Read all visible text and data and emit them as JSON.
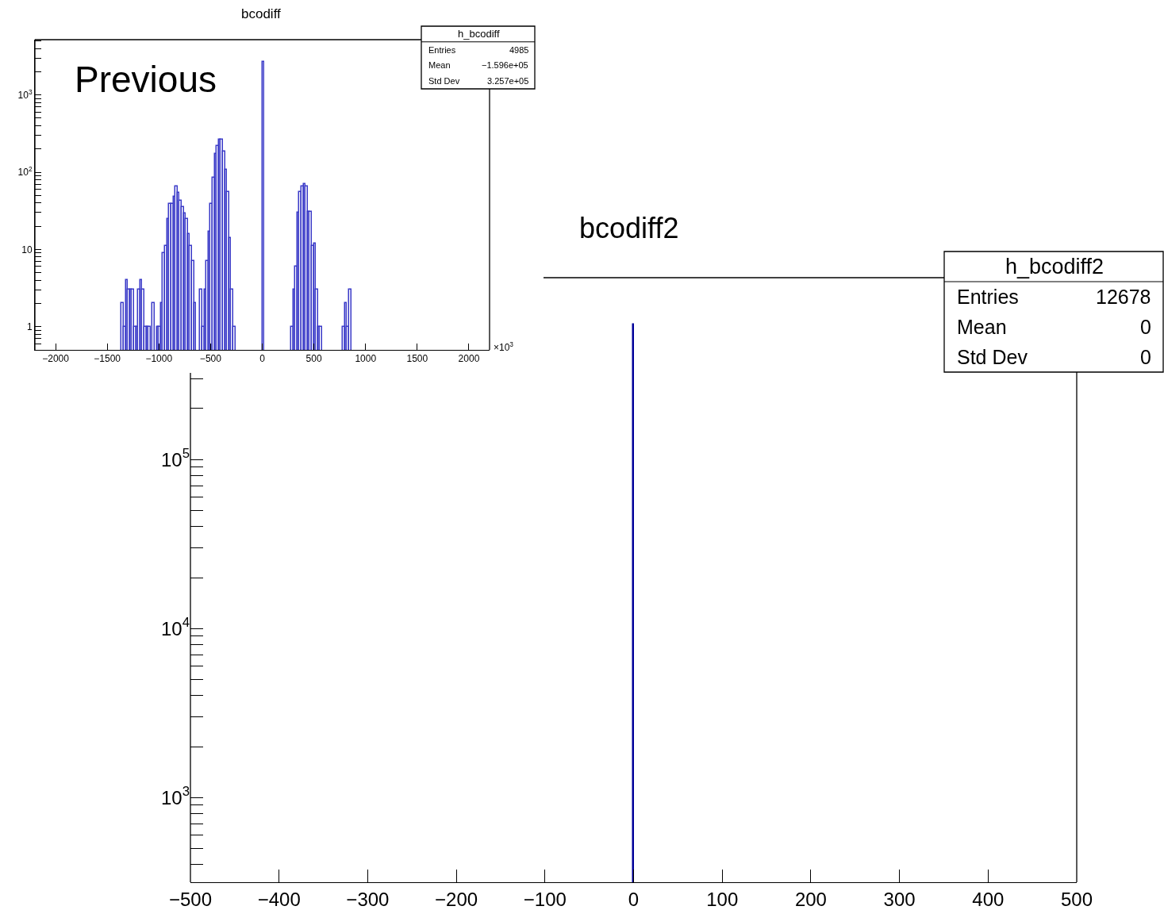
{
  "chart_data": [
    {
      "type": "histogram",
      "title": "bcodiff",
      "xlabel": "×10$^{3}$",
      "color": "#3a3ac8",
      "log": true,
      "bins": [
        -1360,
        -1340,
        -1320,
        -1300,
        -1280,
        -1260,
        -1240,
        -1220,
        -1200,
        -1180,
        -1160,
        -1140,
        -1120,
        -1100,
        -1080,
        -1060,
        -1040,
        -1020,
        -1000,
        -980,
        -960,
        -940,
        -920,
        -900,
        -880,
        -860,
        -840,
        -820,
        -800,
        -780,
        -760,
        -740,
        -720,
        -700,
        -680,
        -660,
        -640,
        -600,
        -580,
        -560,
        -540,
        -520,
        -500,
        -480,
        -460,
        -440,
        -420,
        -400,
        -380,
        -360,
        -340,
        -320,
        -300,
        -280,
        -260,
        0,
        20,
        280,
        300,
        320,
        340,
        360,
        380,
        400,
        420,
        440,
        460,
        480,
        500,
        520,
        540,
        560,
        580,
        780,
        800,
        820,
        840,
        860
      ],
      "values": [
        2,
        1,
        4,
        3,
        3,
        3,
        1,
        1,
        3,
        4,
        3,
        1,
        1,
        1,
        null,
        2,
        null,
        1,
        1,
        2,
        9,
        11,
        25,
        39,
        39,
        48,
        66,
        54,
        43,
        35,
        29,
        25,
        16,
        11,
        7,
        2,
        null,
        3,
        1,
        3,
        7,
        17,
        39,
        84,
        173,
        220,
        265,
        265,
        186,
        108,
        55,
        14,
        3,
        1,
        null,
        2700,
        null,
        1,
        3,
        6,
        30,
        55,
        65,
        71,
        65,
        31,
        31,
        11,
        12,
        3,
        1,
        1,
        null,
        1,
        2,
        1,
        3
      ],
      "xlim": [
        -2200,
        2200
      ],
      "xticks": [
        -2000,
        -1500,
        -1000,
        -500,
        0,
        500,
        1000,
        1500,
        2000
      ],
      "ylim": [
        0.5,
        5200
      ],
      "yticks": [
        {
          "value": 0.6,
          "label": null
        },
        {
          "value": 0.7,
          "label": null
        },
        {
          "value": 0.8,
          "label": null
        },
        {
          "value": 0.9,
          "label": null
        },
        1,
        {
          "value": 2,
          "label": null
        },
        {
          "value": 3,
          "label": null
        },
        {
          "value": 4,
          "label": null
        },
        {
          "value": 5,
          "label": null
        },
        {
          "value": 6,
          "label": null
        },
        {
          "value": 7,
          "label": null
        },
        {
          "value": 8,
          "label": null
        },
        {
          "value": 9,
          "label": null
        },
        10,
        {
          "value": 20,
          "label": null
        },
        {
          "value": 30,
          "label": null
        },
        {
          "value": 40,
          "label": null
        },
        {
          "value": 50,
          "label": null
        },
        {
          "value": 60,
          "label": null
        },
        {
          "value": 70,
          "label": null
        },
        {
          "value": 80,
          "label": null
        },
        {
          "value": 90,
          "label": null
        },
        {
          "value": 100,
          "label": "10$^{2}$"
        },
        {
          "value": 200,
          "label": null
        },
        {
          "value": 300,
          "label": null
        },
        {
          "value": 400,
          "label": null
        },
        {
          "value": 500,
          "label": null
        },
        {
          "value": 600,
          "label": null
        },
        {
          "value": 700,
          "label": null
        },
        {
          "value": 800,
          "label": null
        },
        {
          "value": 900,
          "label": null
        },
        {
          "value": 1000,
          "label": "10$^{3}$"
        },
        {
          "value": 2000,
          "label": null
        },
        {
          "value": 3000,
          "label": null
        },
        {
          "value": 4000,
          "label": null
        },
        {
          "value": 5000,
          "label": null
        }
      ],
      "annotations": [
        "Previous",
        "h_bcodiff",
        "Entries",
        "4985",
        "Mean",
        "−1.596e+05",
        "Std Dev",
        "3.257e+05"
      ]
    },
    {
      "type": "histogram",
      "title": "bcodiff2",
      "color": "#00009a",
      "log": true,
      "bins": [
        -0.5,
        0.5
      ],
      "values": [
        630000
      ],
      "xlim": [
        -500,
        500
      ],
      "xticks": [
        -500,
        -400,
        -300,
        -200,
        -100,
        0,
        100,
        200,
        300,
        400,
        500
      ],
      "ylim": [
        315,
        1190000
      ],
      "yticks": [
        {
          "value": 400,
          "label": null
        },
        {
          "value": 500,
          "label": null
        },
        {
          "value": 600,
          "label": null
        },
        {
          "value": 700,
          "label": null
        },
        {
          "value": 800,
          "label": null
        },
        {
          "value": 900,
          "label": null
        },
        {
          "value": 1000,
          "label": "10$^{3}$"
        },
        {
          "value": 2000,
          "label": null
        },
        {
          "value": 3000,
          "label": null
        },
        {
          "value": 4000,
          "label": null
        },
        {
          "value": 5000,
          "label": null
        },
        {
          "value": 6000,
          "label": null
        },
        {
          "value": 7000,
          "label": null
        },
        {
          "value": 8000,
          "label": null
        },
        {
          "value": 9000,
          "label": null
        },
        {
          "value": 10000,
          "label": "10$^{4}$"
        },
        {
          "value": 20000,
          "label": null
        },
        {
          "value": 30000,
          "label": null
        },
        {
          "value": 40000,
          "label": null
        },
        {
          "value": 50000,
          "label": null
        },
        {
          "value": 60000,
          "label": null
        },
        {
          "value": 70000,
          "label": null
        },
        {
          "value": 80000,
          "label": null
        },
        {
          "value": 90000,
          "label": null
        },
        {
          "value": 100000,
          "label": "10$^{5}$"
        },
        {
          "value": 200000,
          "label": null
        },
        {
          "value": 300000,
          "label": null
        }
      ],
      "annotations": [
        "h_bcodiff2",
        "Entries",
        "12678",
        "Mean",
        "0",
        "Std Dev",
        "0"
      ]
    }
  ]
}
